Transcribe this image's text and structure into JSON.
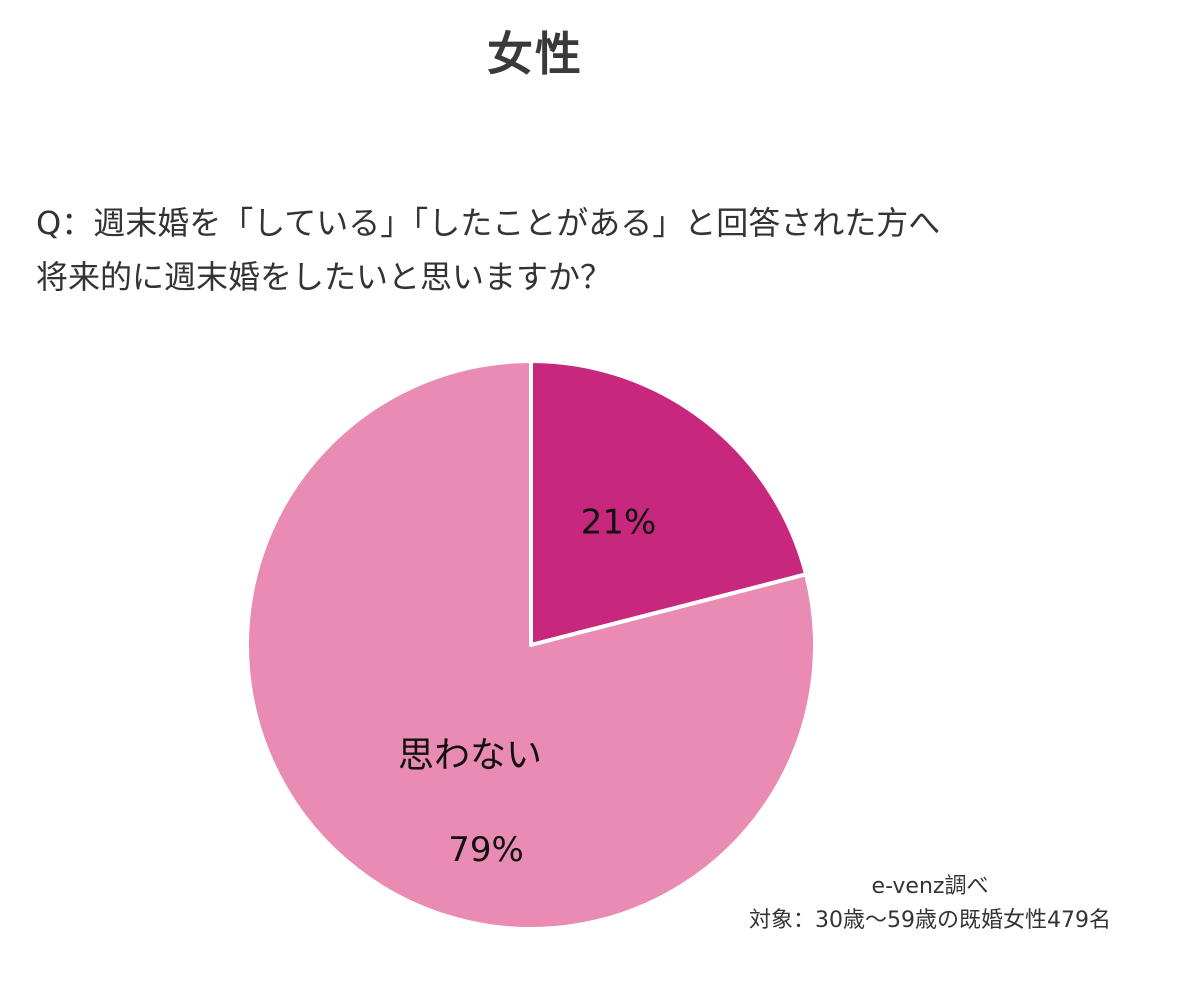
{
  "title": "女性",
  "question": {
    "line1": "Q：週末婚を「している」「したことがある」と回答された方へ",
    "line2": "将来的に週末婚をしたいと思いますか？"
  },
  "colors": {
    "slice_yes": "#C7287D",
    "slice_no": "#E98BB2",
    "separator": "#ffffff"
  },
  "chart_data": {
    "type": "pie",
    "slices": [
      {
        "label": "",
        "value": 21,
        "value_label": "21%",
        "color": "#C7287D"
      },
      {
        "label": "思わない",
        "value": 79,
        "value_label": "79%",
        "color": "#E98BB2"
      }
    ],
    "start_angle": "12 o'clock",
    "direction": "clockwise"
  },
  "source": {
    "line1": "e-venz調べ",
    "line2": "対象：30歳〜59歳の既婚女性479名"
  }
}
